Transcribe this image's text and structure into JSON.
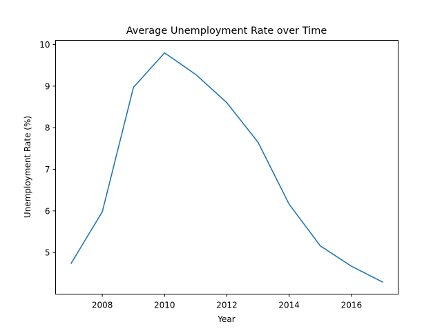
{
  "chart_data": {
    "type": "line",
    "title": "Average Unemployment Rate over Time",
    "xlabel": "Year",
    "ylabel": "Unemployment Rate (%)",
    "x": [
      2007,
      2008,
      2009,
      2010,
      2011,
      2012,
      2013,
      2014,
      2015,
      2016,
      2017
    ],
    "series": [
      {
        "values": [
          4.74,
          5.98,
          8.97,
          9.8,
          9.28,
          8.6,
          7.65,
          6.16,
          5.16,
          4.67,
          4.29
        ],
        "color": "#1f77b4"
      }
    ],
    "xlim": [
      2006.5,
      2017.5
    ],
    "ylim": [
      4.0,
      10.1
    ],
    "xticks": [
      2008,
      2010,
      2012,
      2014,
      2016
    ],
    "yticks": [
      5,
      6,
      7,
      8,
      9,
      10
    ],
    "xtick_labels": [
      "2008",
      "2010",
      "2012",
      "2014",
      "2016"
    ],
    "ytick_labels": [
      "5",
      "6",
      "7",
      "8",
      "9",
      "10"
    ],
    "grid": false,
    "legend": "none"
  }
}
